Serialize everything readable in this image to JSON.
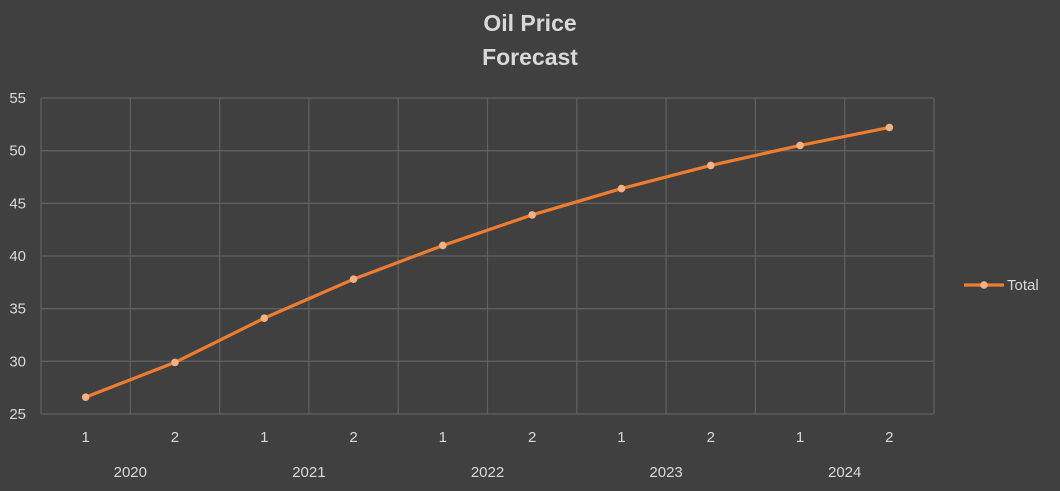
{
  "chart_data": {
    "type": "line",
    "title_lines": [
      "Oil Price",
      "Forecast"
    ],
    "xlabel": "",
    "ylabel": "",
    "ylim": [
      25,
      55
    ],
    "y_ticks": [
      25,
      30,
      35,
      40,
      45,
      50,
      55
    ],
    "categories": [
      "1",
      "2",
      "1",
      "2",
      "1",
      "2",
      "1",
      "2",
      "1",
      "2"
    ],
    "groups": [
      {
        "label": "2020",
        "span": 2
      },
      {
        "label": "2021",
        "span": 2
      },
      {
        "label": "2022",
        "span": 2
      },
      {
        "label": "2023",
        "span": 2
      },
      {
        "label": "2024",
        "span": 2
      }
    ],
    "series": [
      {
        "name": "Total",
        "color": "#ed7d31",
        "marker_color": "#f4b183",
        "values": [
          26.6,
          29.9,
          34.1,
          37.8,
          41.0,
          43.9,
          46.4,
          48.6,
          50.5,
          52.2
        ]
      }
    ],
    "grid": true,
    "legend_position": "right"
  }
}
